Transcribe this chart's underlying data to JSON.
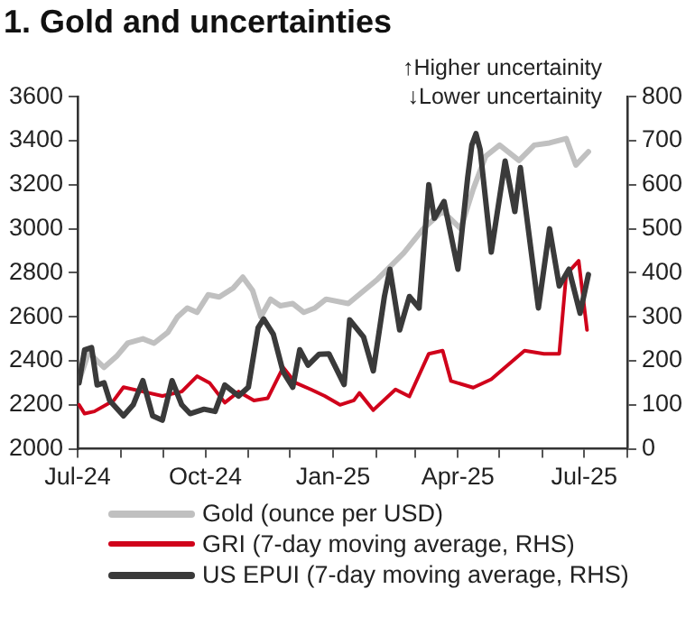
{
  "chart_data": {
    "type": "line",
    "title": "1. Gold and uncertainties",
    "annotations": [
      "↑Higher uncertainity",
      "↓Lower uncertainity"
    ],
    "xlim": [
      "2024-07-01",
      "2025-08-01"
    ],
    "xticks": [
      {
        "value": "2024-07-01",
        "label": "Jul-24"
      },
      {
        "value": "2024-08-01",
        "label": null
      },
      {
        "value": "2024-09-01",
        "label": null
      },
      {
        "value": "2024-10-01",
        "label": "Oct-24"
      },
      {
        "value": "2024-11-01",
        "label": null
      },
      {
        "value": "2024-12-01",
        "label": null
      },
      {
        "value": "2025-01-01",
        "label": "Jan-25"
      },
      {
        "value": "2025-02-01",
        "label": null
      },
      {
        "value": "2025-03-01",
        "label": null
      },
      {
        "value": "2025-04-01",
        "label": "Apr-25"
      },
      {
        "value": "2025-05-01",
        "label": null
      },
      {
        "value": "2025-06-01",
        "label": null
      },
      {
        "value": "2025-07-01",
        "label": "Jul-25"
      },
      {
        "value": "2025-08-01",
        "label": null
      }
    ],
    "ylim": [
      2000,
      3600
    ],
    "yticks": [
      2000,
      2200,
      2400,
      2600,
      2800,
      3000,
      3200,
      3400,
      3600
    ],
    "y2lim": [
      0,
      800
    ],
    "y2ticks": [
      0,
      100,
      200,
      300,
      400,
      500,
      600,
      700,
      800
    ],
    "grid": false,
    "legend": "bottom",
    "marker": "none",
    "line_style": "solid",
    "series": [
      {
        "name": "Gold (ounce per USD)",
        "color": "#c0c0c0",
        "x": [
          "2024-07-02",
          "2024-07-09",
          "2024-07-15",
          "2024-07-20",
          "2024-07-29",
          "2024-08-06",
          "2024-08-17",
          "2024-08-25",
          "2024-09-04",
          "2024-09-11",
          "2024-09-18",
          "2024-09-25",
          "2024-10-03",
          "2024-10-11",
          "2024-10-21",
          "2024-10-28",
          "2024-11-04",
          "2024-11-10",
          "2024-11-17",
          "2024-11-24",
          "2024-12-03",
          "2024-12-11",
          "2024-12-19",
          "2024-12-27",
          "2025-01-12",
          "2025-02-02",
          "2025-02-21",
          "2025-03-07",
          "2025-03-21",
          "2025-04-03",
          "2025-04-12",
          "2025-04-21",
          "2025-05-01",
          "2025-05-15",
          "2025-05-26",
          "2025-06-06",
          "2025-06-18",
          "2025-06-25",
          "2025-07-04"
        ],
        "values": [
          2310,
          2440,
          2400,
          2370,
          2420,
          2480,
          2500,
          2480,
          2530,
          2600,
          2640,
          2620,
          2700,
          2690,
          2730,
          2780,
          2720,
          2600,
          2680,
          2650,
          2660,
          2620,
          2640,
          2680,
          2660,
          2770,
          2890,
          3000,
          3080,
          3000,
          3180,
          3330,
          3380,
          3310,
          3380,
          3390,
          3410,
          3290,
          3350
        ]
      },
      {
        "name": "GRI (7-day moving average, RHS)",
        "color": "#d0021b",
        "axis": "y2",
        "x": [
          "2024-07-02",
          "2024-07-06",
          "2024-07-13",
          "2024-07-27",
          "2024-08-03",
          "2024-08-17",
          "2024-08-31",
          "2024-09-14",
          "2024-09-25",
          "2024-10-04",
          "2024-10-15",
          "2024-10-25",
          "2024-11-05",
          "2024-11-15",
          "2024-11-26",
          "2024-12-05",
          "2024-12-16",
          "2024-12-26",
          "2025-01-06",
          "2025-01-16",
          "2025-01-20",
          "2025-01-30",
          "2025-02-15",
          "2025-02-25",
          "2025-03-11",
          "2025-03-21",
          "2025-03-27",
          "2025-04-12",
          "2025-04-25",
          "2025-05-05",
          "2025-05-19",
          "2025-06-02",
          "2025-06-13",
          "2025-06-18",
          "2025-06-27",
          "2025-07-03"
        ],
        "values": [
          100,
          80,
          85,
          110,
          140,
          130,
          120,
          130,
          165,
          150,
          105,
          130,
          110,
          115,
          185,
          150,
          135,
          120,
          100,
          110,
          127,
          88,
          135,
          119,
          216,
          223,
          154,
          139,
          158,
          185,
          223,
          216,
          216,
          396,
          427,
          270
        ]
      },
      {
        "name": "US EPUI (7-day moving average, RHS)",
        "color": "#3a3a3a",
        "axis": "y2",
        "x": [
          "2024-07-02",
          "2024-07-06",
          "2024-07-11",
          "2024-07-15",
          "2024-07-20",
          "2024-07-24",
          "2024-08-03",
          "2024-08-10",
          "2024-08-17",
          "2024-08-24",
          "2024-08-31",
          "2024-09-07",
          "2024-09-14",
          "2024-09-20",
          "2024-09-30",
          "2024-10-08",
          "2024-10-15",
          "2024-10-25",
          "2024-11-01",
          "2024-11-08",
          "2024-11-12",
          "2024-11-19",
          "2024-11-26",
          "2024-12-03",
          "2024-12-08",
          "2024-12-14",
          "2024-12-22",
          "2024-12-29",
          "2025-01-09",
          "2025-01-13",
          "2025-01-23",
          "2025-01-30",
          "2025-02-07",
          "2025-02-11",
          "2025-02-18",
          "2025-02-25",
          "2025-03-04",
          "2025-03-11",
          "2025-03-15",
          "2025-03-22",
          "2025-04-01",
          "2025-04-08",
          "2025-04-11",
          "2025-04-14",
          "2025-04-17",
          "2025-04-25",
          "2025-05-05",
          "2025-05-12",
          "2025-05-16",
          "2025-05-29",
          "2025-06-06",
          "2025-06-13",
          "2025-06-20",
          "2025-06-28",
          "2025-07-04"
        ],
        "values": [
          150,
          225,
          230,
          145,
          150,
          110,
          75,
          100,
          155,
          75,
          65,
          155,
          100,
          80,
          90,
          85,
          145,
          120,
          140,
          275,
          295,
          260,
          175,
          140,
          225,
          190,
          215,
          216,
          146,
          293,
          254,
          177,
          346,
          408,
          270,
          346,
          320,
          600,
          524,
          562,
          408,
          616,
          690,
          716,
          680,
          447,
          654,
          539,
          639,
          320,
          500,
          370,
          408,
          308,
          396
        ]
      }
    ]
  }
}
